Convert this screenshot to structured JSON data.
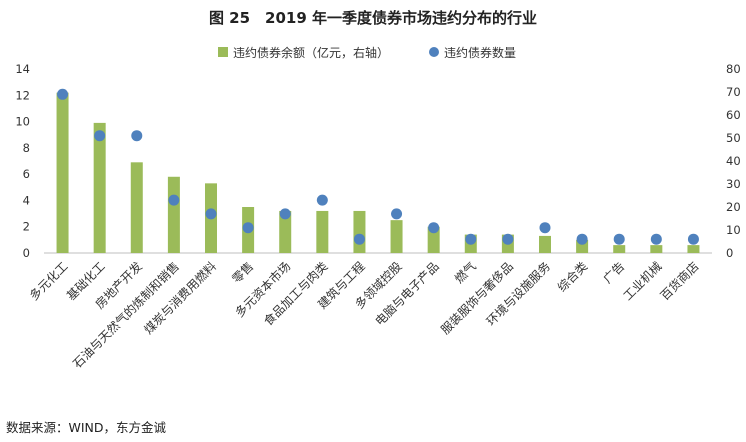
{
  "chart_data": {
    "type": "bar+scatter",
    "title": "图 25　2019 年一季度债券市场违约分布的行业",
    "categories": [
      "多元化工",
      "基础化工",
      "房地产开发",
      "石油与天然气的炼制和销售",
      "煤炭与消费用燃料",
      "零售",
      "多元资本市场",
      "食品加工与肉类",
      "建筑与工程",
      "多领域控股",
      "电脑与电子产品",
      "燃气",
      "服装服饰与奢侈品",
      "环境与设施服务",
      "综合类",
      "广告",
      "工业机械",
      "百货商店"
    ],
    "series": [
      {
        "name": "违约债券余额（亿元，右轴）",
        "type": "bar",
        "axis": "left",
        "values": [
          12.2,
          9.9,
          6.9,
          5.8,
          5.3,
          3.5,
          3.2,
          3.2,
          3.2,
          2.5,
          2.0,
          1.4,
          1.4,
          1.3,
          1.0,
          0.6,
          0.6,
          0.6
        ]
      },
      {
        "name": "违约债券数量",
        "type": "scatter",
        "axis": "right",
        "values": [
          69,
          51,
          51,
          23,
          17,
          11,
          17,
          23,
          6,
          17,
          11,
          6,
          6,
          11,
          6,
          6,
          6,
          6
        ]
      }
    ],
    "y_left": {
      "min": 0,
      "max": 14,
      "ticks": [
        "0",
        "2",
        "4",
        "6",
        "8",
        "10",
        "12",
        "14"
      ]
    },
    "y_right": {
      "min": 0,
      "max": 80,
      "ticks": [
        "0",
        "10",
        "20",
        "30",
        "40",
        "50",
        "60",
        "70",
        "80"
      ]
    },
    "legend_position": "top",
    "colors": {
      "bar": "#9bbb59",
      "dot": "#4f81bd"
    }
  },
  "source": "数据来源：WIND，东方金诚"
}
